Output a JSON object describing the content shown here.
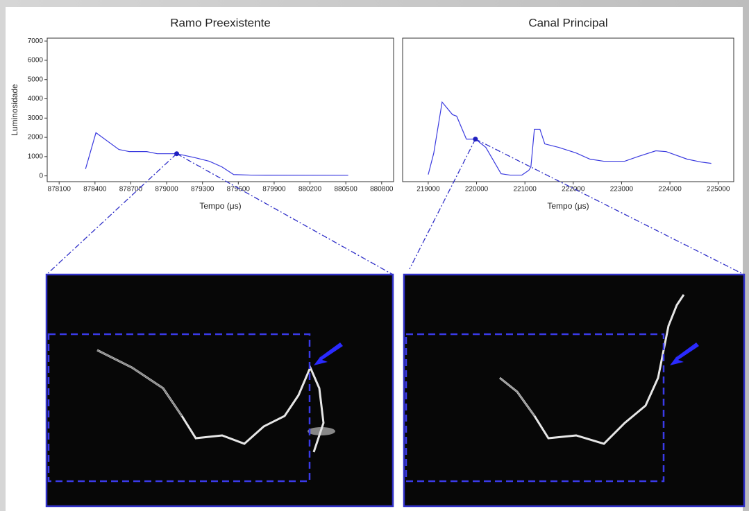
{
  "chart_data": [
    {
      "type": "line",
      "title": "Ramo Preexistente",
      "x_label": "Tempo (μs)",
      "y_label": "Luminosidade",
      "xlim": [
        878000,
        880900
      ],
      "ylim": [
        -300,
        7150
      ],
      "xticks": [
        878100,
        878400,
        878700,
        879000,
        879300,
        879600,
        879900,
        880200,
        880500,
        880800
      ],
      "yticks": [
        0,
        1000,
        2000,
        3000,
        4000,
        5000,
        6000,
        7000
      ],
      "series": [
        {
          "name": "Luminosidade",
          "color": "#3a3adf",
          "x": [
            878321,
            878408,
            878600,
            878688,
            878833,
            878921,
            879084,
            879241,
            879357,
            879462,
            879561,
            879706,
            880520
          ],
          "values": [
            360,
            2240,
            1370,
            1260,
            1260,
            1150,
            1150,
            940,
            760,
            470,
            70,
            40,
            30
          ]
        }
      ]
    },
    {
      "type": "line",
      "title": "Canal Principal",
      "x_label": "Tempo (μs)",
      "xlim": [
        218470,
        225320
      ],
      "ylim": [
        -300,
        7150
      ],
      "xticks": [
        219000,
        220000,
        221000,
        222000,
        223000,
        224000,
        225000
      ],
      "series": [
        {
          "name": "Luminosidade",
          "color": "#3a3adf",
          "x": [
            219000,
            219115,
            219287,
            219502,
            219588,
            219789,
            219976,
            220191,
            220507,
            220693,
            220937,
            221081,
            221124,
            221196,
            221311,
            221411,
            221698,
            222057,
            222345,
            222632,
            223063,
            223350,
            223708,
            223924,
            224354,
            224641,
            224856
          ],
          "values": [
            70,
            1190,
            3830,
            3180,
            3100,
            1910,
            1910,
            1480,
            110,
            40,
            40,
            290,
            470,
            2420,
            2420,
            1660,
            1480,
            1190,
            870,
            760,
            760,
            1010,
            1300,
            1260,
            870,
            720,
            650
          ]
        }
      ]
    }
  ]
}
